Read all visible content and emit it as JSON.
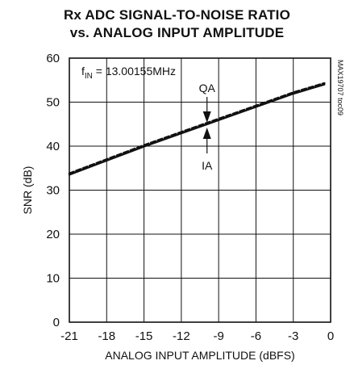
{
  "chart_data": {
    "type": "line",
    "title_lines": [
      "Rx ADC SIGNAL-TO-NOISE RATIO",
      "vs. ANALOG INPUT AMPLITUDE"
    ],
    "xlabel": "ANALOG INPUT AMPLITUDE (dBFS)",
    "ylabel": "SNR (dB)",
    "xlim": [
      -21,
      0
    ],
    "ylim": [
      0,
      60
    ],
    "xticks": [
      -21,
      -18,
      -15,
      -12,
      -9,
      -6,
      -3,
      0
    ],
    "yticks": [
      0,
      10,
      20,
      30,
      40,
      50,
      60
    ],
    "xtick_labels": [
      "-21",
      "-18",
      "-15",
      "-12",
      "-9",
      "-6",
      "-3",
      "0"
    ],
    "ytick_labels": [
      "0",
      "10",
      "20",
      "30",
      "40",
      "50",
      "60"
    ],
    "grid": true,
    "series": [
      {
        "name": "QA",
        "style": "dashed",
        "x": [
          -21,
          -18,
          -15,
          -12,
          -9,
          -6,
          -3,
          -0.5
        ],
        "y": [
          33.8,
          37.0,
          40.2,
          43.2,
          46.2,
          49.2,
          52.2,
          54.3
        ]
      },
      {
        "name": "IA",
        "style": "solid",
        "x": [
          -21,
          -18,
          -15,
          -12,
          -9,
          -6,
          -3,
          -0.5
        ],
        "y": [
          33.5,
          36.7,
          39.9,
          42.9,
          45.9,
          48.9,
          51.9,
          54.0
        ]
      }
    ],
    "annotations": {
      "frequency_prefix": "f",
      "frequency_sub": "IN",
      "frequency_value": " = 13.00155MHz",
      "doc_code": "MAX19707 toc09",
      "qa_label": "QA",
      "ia_label": "IA",
      "marker_x": -10
    },
    "colors": {
      "line": "#111111",
      "grid": "#111111",
      "background": "#ffffff"
    }
  }
}
